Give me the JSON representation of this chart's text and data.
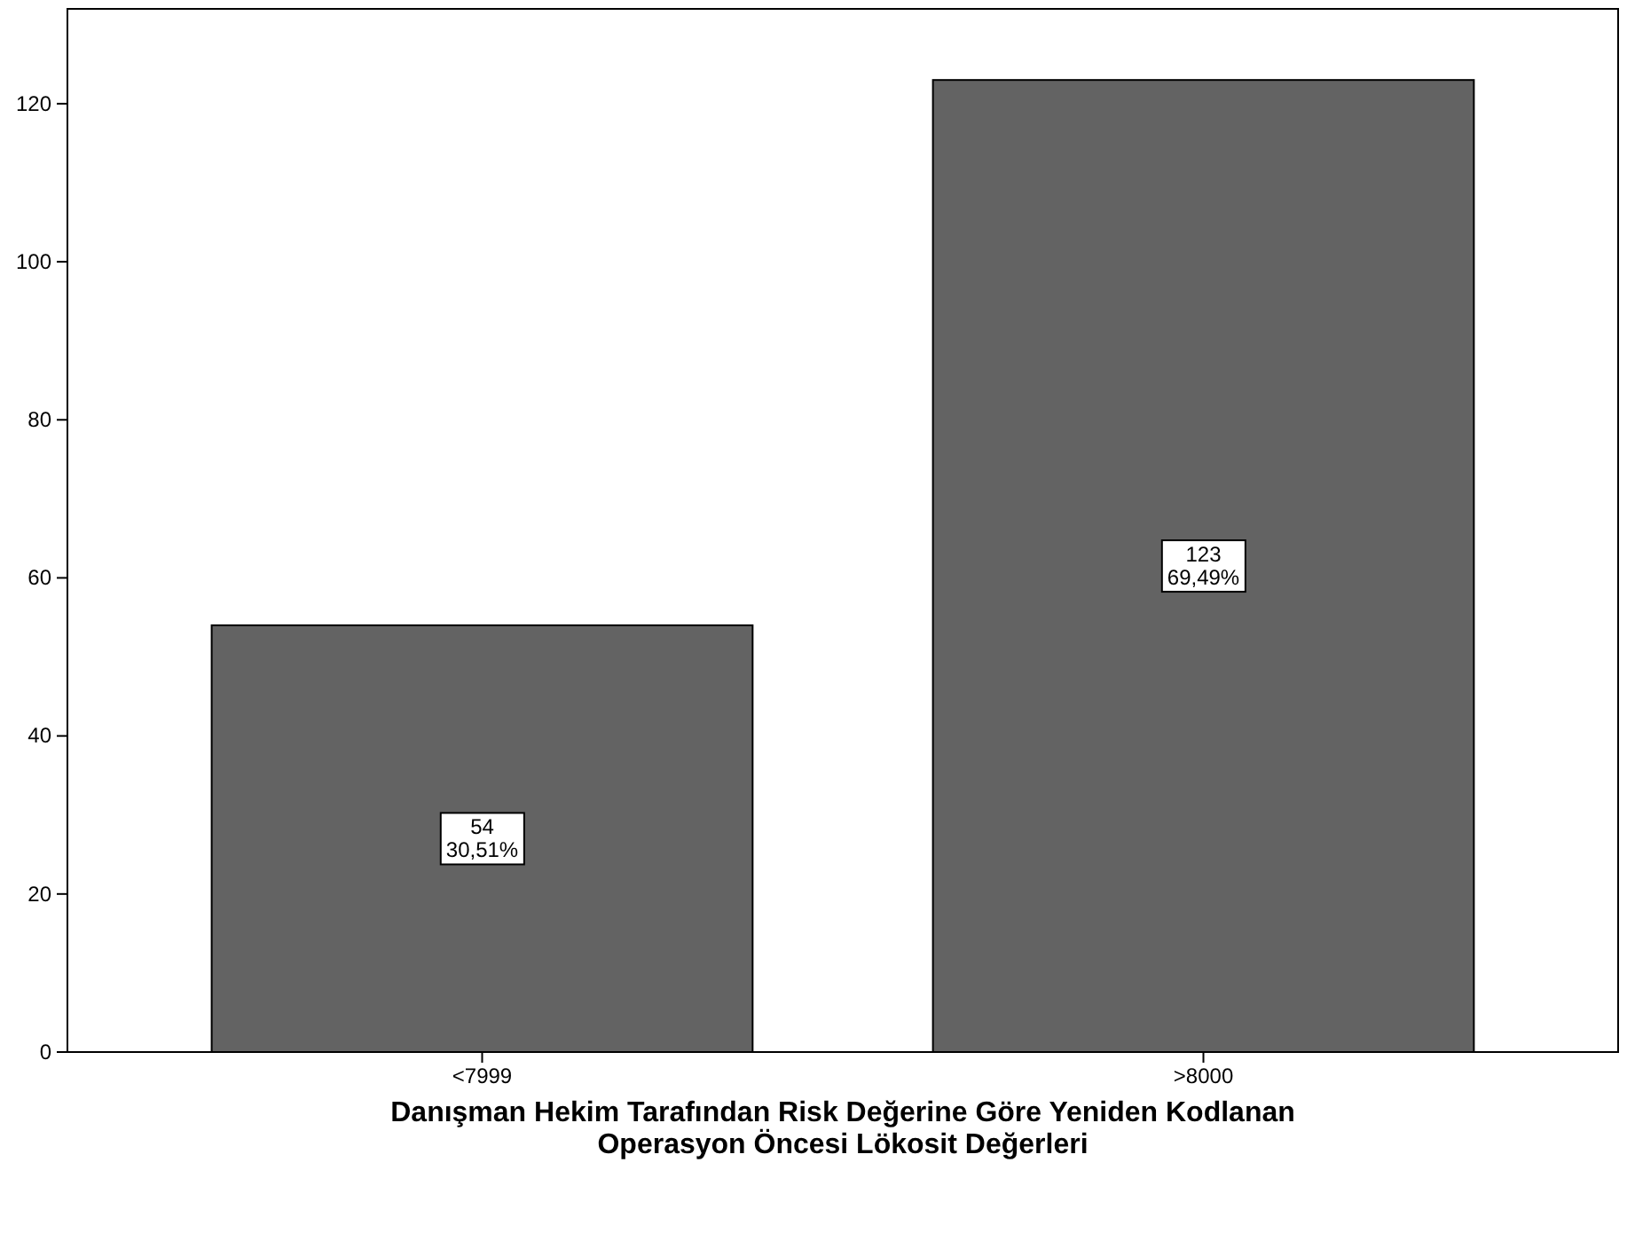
{
  "chart_data": {
    "type": "bar",
    "categories": [
      "<7999",
      ">8000"
    ],
    "values": [
      54,
      123
    ],
    "color": "#636363",
    "value_labels": [
      "54\n30,51%",
      "123\n69,49%"
    ],
    "xlabel": "Danışman Hekim Tarafından Risk Değerine Göre Yeniden Kodlanan\nOperasyon Öncesi Lökosit Değerleri",
    "ylim": [
      0,
      132
    ],
    "yticks": [
      0,
      20,
      40,
      60,
      80,
      100,
      120
    ]
  }
}
